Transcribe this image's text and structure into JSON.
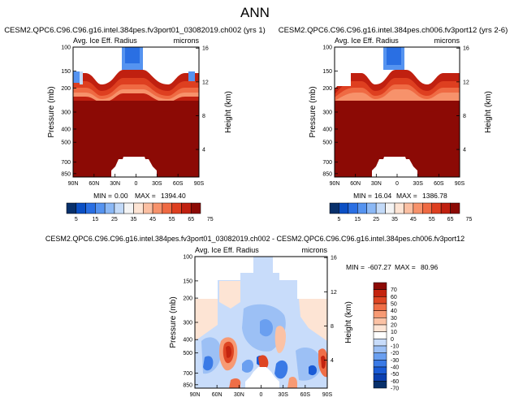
{
  "page": {
    "title": "ANN"
  },
  "colors": {
    "abs_scale": [
      "#08306b",
      "#0b4fc4",
      "#2a6fe3",
      "#5593f0",
      "#8bb8f5",
      "#c3daf8",
      "#f4f4f4",
      "#fde4d4",
      "#fbbfa2",
      "#f7926b",
      "#ef6a43",
      "#de3f20",
      "#c02010",
      "#8c0a05"
    ],
    "diff_scale": [
      "#08306b",
      "#0b3fb0",
      "#1a5bd6",
      "#3a7ae6",
      "#6a9ff0",
      "#9cc0f5",
      "#c8dcfa",
      "#ffffff",
      "#fde4d4",
      "#fbc2a5",
      "#f79a74",
      "#ef6e47",
      "#de4523",
      "#c4240f",
      "#8c0a05"
    ]
  },
  "chart_data": [
    {
      "id": "top-left",
      "type": "heatmap",
      "title": "CESM2.QPC6.C96.C96.g16.intel.384pes.fv3port01_03082019.ch002 (yrs 1)",
      "subtitle": "Avg. Ice Eff. Radius",
      "units": "microns",
      "ylabel": "Pressure (mb)",
      "y2label": "Height (km)",
      "x_ticks": [
        "90N",
        "60N",
        "30N",
        "0",
        "30S",
        "60S",
        "90S"
      ],
      "p_ticks": [
        "100",
        "150",
        "200",
        "300",
        "400",
        "500",
        "700",
        "850"
      ],
      "z_ticks": [
        "16",
        "12",
        "8",
        "4"
      ],
      "min_label": "MIN =",
      "min_value": "0.00",
      "max_label": "MAX =",
      "max_value": "1394.40",
      "has_colorbar": true
    },
    {
      "id": "top-right",
      "type": "heatmap",
      "title": "CESM2.QPC6.C96.C96.g16.intel.384pes.ch006.fv3port12 (yrs 2-6)",
      "subtitle": "Avg. Ice Eff. Radius",
      "units": "microns",
      "ylabel": "Pressure (mb)",
      "y2label": "Height (km)",
      "x_ticks": [
        "90N",
        "60N",
        "30N",
        "0",
        "30S",
        "60S",
        "90S"
      ],
      "p_ticks": [
        "100",
        "150",
        "200",
        "300",
        "400",
        "500",
        "700",
        "850"
      ],
      "z_ticks": [
        "16",
        "12",
        "8",
        "4"
      ],
      "min_label": "MIN =",
      "min_value": "16.04",
      "max_label": "MAX =",
      "max_value": "1386.78",
      "has_colorbar": true
    },
    {
      "id": "bottom",
      "type": "heatmap",
      "title": "CESM2.QPC6.C96.C96.g16.intel.384pes.fv3port01_03082019.ch002 - CESM2.QPC6.C96.C96.g16.intel.384pes.ch006.fv3port12",
      "subtitle": "Avg. Ice Eff. Radius",
      "units": "microns",
      "ylabel": "Pressure (mb)",
      "y2label": "Height (km)",
      "x_ticks": [
        "90N",
        "60N",
        "30N",
        "0",
        "30S",
        "60S",
        "90S"
      ],
      "p_ticks": [
        "100",
        "150",
        "200",
        "300",
        "400",
        "500",
        "700",
        "850"
      ],
      "z_ticks": [
        "16",
        "12",
        "8",
        "4"
      ],
      "min_label": "MIN =",
      "min_value": "-607.27",
      "max_label": "MAX =",
      "max_value": "80.96",
      "has_colorbar": true
    }
  ],
  "colorbar_abs": {
    "labels": [
      "5",
      "15",
      "25",
      "35",
      "45",
      "55",
      "65",
      "75"
    ]
  },
  "colorbar_diff": {
    "labels": [
      "70",
      "60",
      "50",
      "40",
      "30",
      "20",
      "10",
      "0",
      "-10",
      "-20",
      "-30",
      "-40",
      "-50",
      "-60",
      "-70"
    ]
  }
}
